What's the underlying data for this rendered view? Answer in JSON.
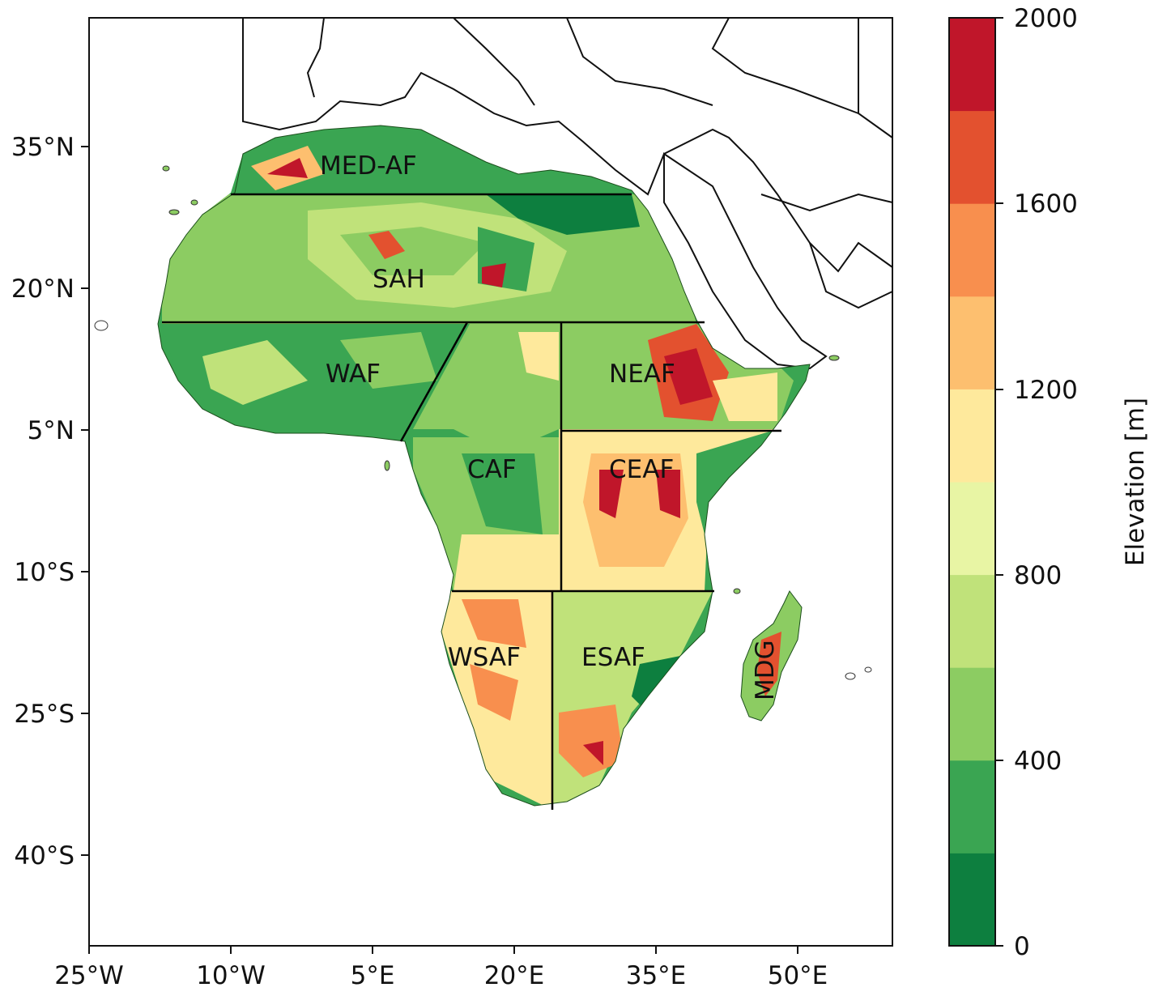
{
  "map": {
    "lon_ticks": [
      "25°W",
      "10°W",
      "5°E",
      "20°E",
      "35°E",
      "50°E"
    ],
    "lat_ticks": [
      "35°N",
      "20°N",
      "5°N",
      "10°S",
      "25°S",
      "40°S"
    ],
    "regions": [
      {
        "id": "MED-AF",
        "label": "MED-AF"
      },
      {
        "id": "SAH",
        "label": "SAH"
      },
      {
        "id": "WAF",
        "label": "WAF"
      },
      {
        "id": "NEAF",
        "label": "NEAF"
      },
      {
        "id": "CAF",
        "label": "CAF"
      },
      {
        "id": "CEAF",
        "label": "CEAF"
      },
      {
        "id": "WSAF",
        "label": "WSAF"
      },
      {
        "id": "ESAF",
        "label": "ESAF"
      },
      {
        "id": "MDG",
        "label": "MDG"
      }
    ]
  },
  "colorbar": {
    "label": "Elevation [m]",
    "tick_labels": [
      "0",
      "400",
      "800",
      "1200",
      "1600",
      "2000"
    ],
    "levels": [
      0,
      200,
      400,
      600,
      800,
      1000,
      1200,
      1400,
      1600,
      1800,
      2000
    ],
    "colors": [
      "#0d7f3f",
      "#3aa552",
      "#8ccc62",
      "#c0e27a",
      "#e8f5a4",
      "#fee99c",
      "#fdbf6f",
      "#f88f4e",
      "#e3512f",
      "#c0162a"
    ]
  }
}
